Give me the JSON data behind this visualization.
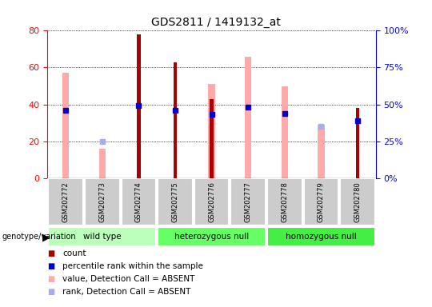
{
  "title": "GDS2811 / 1419132_at",
  "samples": [
    "GSM202772",
    "GSM202773",
    "GSM202774",
    "GSM202775",
    "GSM202776",
    "GSM202777",
    "GSM202778",
    "GSM202779",
    "GSM202780"
  ],
  "count": [
    null,
    null,
    78,
    63,
    43,
    null,
    null,
    null,
    38
  ],
  "percentile_rank": [
    46,
    null,
    49,
    46,
    43,
    48,
    44,
    null,
    39
  ],
  "value_absent": [
    57,
    16,
    null,
    null,
    51,
    66,
    50,
    29,
    null
  ],
  "rank_absent": [
    null,
    25,
    null,
    null,
    null,
    null,
    null,
    35,
    null
  ],
  "groups": [
    {
      "label": "wild type",
      "start": 0,
      "end": 3,
      "color": "#bbffbb"
    },
    {
      "label": "heterozygous null",
      "start": 3,
      "end": 6,
      "color": "#66ff66"
    },
    {
      "label": "homozygous null",
      "start": 6,
      "end": 9,
      "color": "#44ee44"
    }
  ],
  "ylim_left": [
    0,
    80
  ],
  "ylim_right": [
    0,
    100
  ],
  "left_ticks": [
    0,
    20,
    40,
    60,
    80
  ],
  "right_ticks": [
    0,
    25,
    50,
    75,
    100
  ],
  "right_tick_labels": [
    "0%",
    "25%",
    "50%",
    "75%",
    "100%"
  ],
  "count_color": "#aa0000",
  "percentile_color": "#0000cc",
  "value_absent_color": "#ffaaaa",
  "rank_absent_color": "#aaaaee",
  "legend_items": [
    {
      "label": "count",
      "color": "#aa0000"
    },
    {
      "label": "percentile rank within the sample",
      "color": "#0000cc"
    },
    {
      "label": "value, Detection Call = ABSENT",
      "color": "#ffaaaa"
    },
    {
      "label": "rank, Detection Call = ABSENT",
      "color": "#aaaaee"
    }
  ]
}
